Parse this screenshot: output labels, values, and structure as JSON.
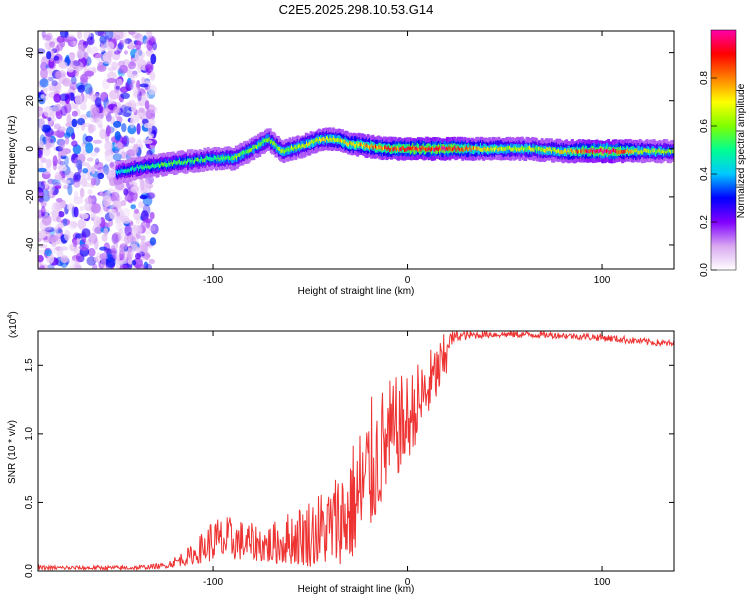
{
  "title": "C2E5.2025.298.10.53.G14",
  "chart_data": [
    {
      "type": "heatmap",
      "xlabel": "Height of straight line (km)",
      "ylabel": "Frequency (Hz)",
      "xlim": [
        -190,
        137
      ],
      "ylim": [
        -50,
        49
      ],
      "xticks": [
        -100,
        0,
        100
      ],
      "yticks": [
        -40,
        -20,
        0,
        20,
        40
      ],
      "colorbar": {
        "label": "Normalized spectral amplitude",
        "range": [
          0,
          1
        ],
        "ticks": [
          "0.0",
          "0.2",
          "0.4",
          "0.6",
          "0.8"
        ],
        "stops": [
          "#ffffff",
          "#d8a8f0",
          "#8000ff",
          "#0000ff",
          "#00c8ff",
          "#00ff90",
          "#80ff00",
          "#ffff00",
          "#ff8000",
          "#ff0000",
          "#ff00aa"
        ]
      },
      "ridge": {
        "x": [
          -150,
          -140,
          -130,
          -120,
          -110,
          -100,
          -90,
          -80,
          -72,
          -65,
          -55,
          -45,
          -38,
          -30,
          -20,
          -10,
          0,
          10,
          20,
          40,
          60,
          80,
          100,
          120,
          137
        ],
        "freq": [
          -10,
          -8,
          -7,
          -6,
          -5,
          -4,
          -4,
          0,
          4,
          -1,
          1,
          4,
          4,
          2,
          1,
          0,
          0,
          0,
          0,
          0,
          0,
          -1,
          -1,
          -1,
          -1
        ],
        "amp": [
          0.35,
          0.4,
          0.45,
          0.45,
          0.45,
          0.45,
          0.5,
          0.5,
          0.5,
          0.55,
          0.55,
          0.6,
          0.6,
          0.65,
          0.7,
          0.75,
          0.8,
          0.8,
          0.85,
          0.6,
          0.55,
          0.6,
          0.95,
          0.55,
          0.5
        ]
      },
      "noise_region_x": [
        -190,
        -130
      ]
    },
    {
      "type": "line",
      "xlabel": "Height of straight line (km)",
      "ylabel": "SNR (10 * v/v)",
      "scale_label": "(x10",
      "scale_exp": "4",
      "xlim": [
        -190,
        137
      ],
      "ylim": [
        0,
        1.75
      ],
      "xticks": [
        -100,
        0,
        100
      ],
      "yticks": [
        "0.0",
        "0.5",
        "1.0",
        "1.5"
      ],
      "color": "#ee3333",
      "envelope": {
        "x": [
          -190,
          -140,
          -125,
          -110,
          -100,
          -90,
          -80,
          -70,
          -60,
          -50,
          -40,
          -30,
          -20,
          -10,
          0,
          10,
          20,
          25,
          40,
          60,
          80,
          100,
          120,
          137
        ],
        "lo": [
          0.01,
          0.01,
          0.02,
          0.05,
          0.07,
          0.08,
          0.08,
          0.05,
          0.05,
          0.03,
          0.05,
          0.05,
          0.25,
          0.6,
          0.8,
          1.1,
          1.4,
          1.6,
          1.65,
          1.65,
          1.65,
          1.62,
          1.6,
          1.58
        ],
        "hi": [
          0.04,
          0.04,
          0.06,
          0.2,
          0.4,
          0.4,
          0.35,
          0.35,
          0.45,
          0.55,
          0.65,
          0.9,
          1.25,
          1.4,
          1.45,
          1.6,
          1.75,
          1.75,
          1.75,
          1.75,
          1.74,
          1.73,
          1.7,
          1.68
        ]
      }
    }
  ]
}
